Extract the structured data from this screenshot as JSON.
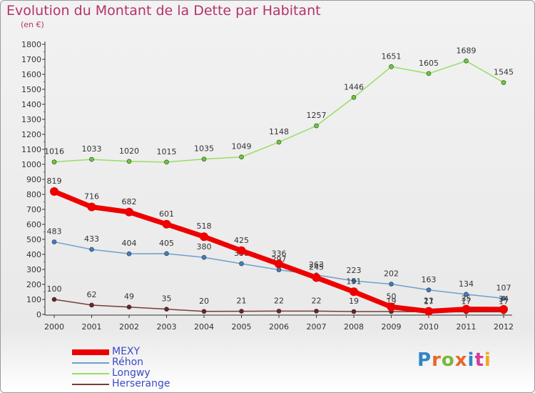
{
  "header": {
    "title": "Evolution du Montant de la Dette par Habitant",
    "subtitle": "(en €)"
  },
  "logo": {
    "text": "Proxiti",
    "colors": [
      "#2f86c9",
      "#e8662a",
      "#7ab83a",
      "#e8662a",
      "#2f86c9",
      "#d43a9a",
      "#f0a820"
    ]
  },
  "chart_data": {
    "type": "line",
    "title": "Evolution du Montant de la Dette par Habitant",
    "ylabel": "(en €)",
    "xlabel": "",
    "x": [
      "2000",
      "2001",
      "2002",
      "2003",
      "2004",
      "2005",
      "2006",
      "2007",
      "2008",
      "2009",
      "2010",
      "2011",
      "2012"
    ],
    "ylim": [
      0,
      1800
    ],
    "yticks": [
      0,
      100,
      200,
      300,
      400,
      500,
      600,
      700,
      800,
      900,
      1000,
      1100,
      1200,
      1300,
      1400,
      1500,
      1600,
      1700,
      1800
    ],
    "grid": false,
    "legend_position": "bottom-left",
    "series": [
      {
        "name": "MEXY",
        "color": "#ee0000",
        "width": 7,
        "marker": "#ee0000",
        "values": [
          819,
          716,
          682,
          601,
          518,
          425,
          336,
          245,
          151,
          50,
          21,
          35,
          34
        ]
      },
      {
        "name": "Réhon",
        "color": "#6fa0cd",
        "width": 1.5,
        "marker": "#3c7fc4",
        "values": [
          483,
          433,
          404,
          405,
          380,
          338,
          297,
          263,
          223,
          202,
          163,
          134,
          107
        ]
      },
      {
        "name": "Longwy",
        "color": "#99dd66",
        "width": 1.5,
        "marker": "#66cc33",
        "values": [
          1016,
          1033,
          1020,
          1015,
          1035,
          1049,
          1148,
          1257,
          1446,
          1651,
          1605,
          1689,
          1545
        ]
      },
      {
        "name": "Herserange",
        "color": "#7a3b3b",
        "width": 1.5,
        "marker": "#6a2424",
        "values": [
          100,
          62,
          49,
          35,
          20,
          21,
          22,
          22,
          19,
          19,
          17,
          17,
          17
        ]
      }
    ]
  }
}
